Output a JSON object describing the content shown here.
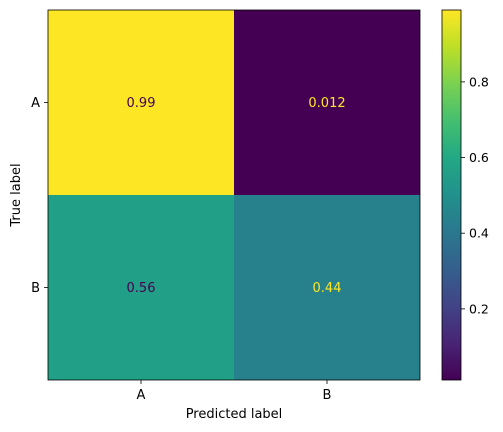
{
  "chart_data": {
    "type": "heatmap",
    "title": "",
    "xlabel": "Predicted label",
    "ylabel": "True label",
    "x_categories": [
      "A",
      "B"
    ],
    "y_categories": [
      "A",
      "B"
    ],
    "values": [
      [
        0.99,
        0.012
      ],
      [
        0.56,
        0.44
      ]
    ],
    "cell_labels": [
      [
        "0.99",
        "0.012"
      ],
      [
        "0.56",
        "0.44"
      ]
    ],
    "colormap": "viridis",
    "colorbar": {
      "range": [
        0.012,
        0.99
      ],
      "ticks": [
        0.2,
        0.4,
        0.6,
        0.8
      ],
      "tick_labels": [
        "0.2",
        "0.4",
        "0.6",
        "0.8"
      ]
    },
    "text_colors": {
      "on_dark": "#FDE725",
      "on_light": "#440154"
    },
    "grid": false
  }
}
